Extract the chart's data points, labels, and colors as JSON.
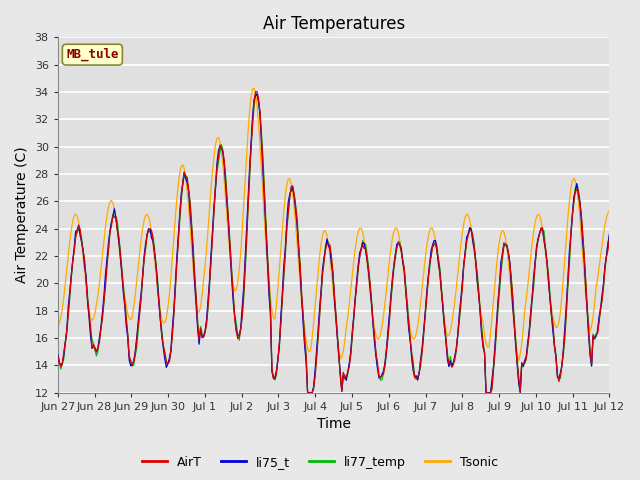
{
  "title": "Air Temperatures",
  "xlabel": "Time",
  "ylabel": "Air Temperature (C)",
  "ylim": [
    12,
    38
  ],
  "yticks": [
    12,
    14,
    16,
    18,
    20,
    22,
    24,
    26,
    28,
    30,
    32,
    34,
    36,
    38
  ],
  "xtick_labels": [
    "Jun 27",
    "Jun 28",
    "Jun 29",
    "Jun 30",
    "Jul 1",
    "Jul 2",
    "Jul 3",
    "Jul 4",
    "Jul 5",
    "Jul 6",
    "Jul 7",
    "Jul 8",
    "Jul 9",
    "Jul 10",
    "Jul 11",
    "Jul 12"
  ],
  "colors": {
    "AirT": "#dd0000",
    "li75_t": "#0000dd",
    "li77_temp": "#00bb00",
    "Tsonic": "#ffaa00"
  },
  "fig_bg": "#e8e8e8",
  "plot_bg": "#e0e0e0",
  "station_label": "MB_tule",
  "station_label_color": "#8b0000",
  "station_box_facecolor": "#ffffcc",
  "station_box_edgecolor": "#888833",
  "title_fontsize": 12,
  "axis_fontsize": 10,
  "tick_fontsize": 8,
  "legend_fontsize": 9,
  "n_days": 15.5,
  "pts_per_day": 24,
  "base_temps": [
    19,
    20,
    19,
    21,
    23,
    25,
    20,
    17,
    18,
    18,
    18,
    19,
    17,
    19,
    20,
    20
  ],
  "amplitudes": [
    5,
    5,
    5,
    7,
    7,
    9,
    7,
    6,
    5,
    5,
    5,
    5,
    6,
    5,
    7,
    4
  ],
  "tsonic_offsets": [
    2,
    2,
    2,
    2,
    2,
    2,
    2,
    2,
    2,
    2,
    2,
    2,
    2,
    2,
    2,
    2
  ],
  "tsonic_amp_scale": 0.85,
  "tsonic_phase": 2.5
}
